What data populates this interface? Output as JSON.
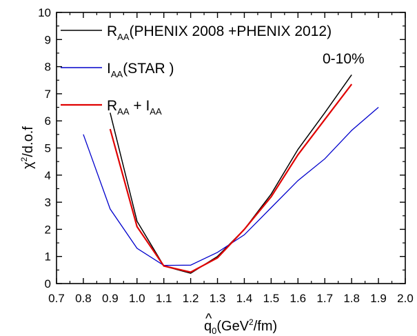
{
  "chart_data": {
    "type": "line",
    "xlabel": {
      "hat": "^",
      "base": "q",
      "sub": "0",
      "pre": "(GeV",
      "sup": "2",
      "post": "/fm)"
    },
    "ylabel": {
      "chi": "χ",
      "sup": "2",
      "rest": "/d.o.f"
    },
    "xlim": [
      0.7,
      2.0
    ],
    "ylim": [
      0,
      10
    ],
    "x_ticks": [
      "0.7",
      "0.8",
      "0.9",
      "1.0",
      "1.1",
      "1.2",
      "1.3",
      "1.4",
      "1.5",
      "1.6",
      "1.7",
      "1.8",
      "1.9",
      "2.0"
    ],
    "y_ticks": [
      "0",
      "1",
      "2",
      "3",
      "4",
      "5",
      "6",
      "7",
      "8",
      "9",
      "10"
    ],
    "grid": false,
    "legend_position": "top-left",
    "annotation": "0-10%",
    "series": [
      {
        "legend": {
          "main": "R",
          "sub": "AA",
          "rest": "(PHENIX 2008 +PHENIX 2012)"
        },
        "color": "#000000",
        "x": [
          0.9,
          1.0,
          1.1,
          1.2,
          1.3,
          1.4,
          1.5,
          1.6,
          1.7,
          1.8
        ],
        "y": [
          6.3,
          2.3,
          0.65,
          0.38,
          1.0,
          2.0,
          3.3,
          4.95,
          6.3,
          7.7
        ]
      },
      {
        "legend": {
          "main": "I",
          "sub": "AA",
          "rest": "(STAR )"
        },
        "color": "#0000cc",
        "x": [
          0.8,
          0.9,
          1.0,
          1.1,
          1.2,
          1.3,
          1.4,
          1.5,
          1.6,
          1.7,
          1.8,
          1.9
        ],
        "y": [
          5.5,
          2.75,
          1.3,
          0.67,
          0.68,
          1.15,
          1.8,
          2.8,
          3.8,
          4.6,
          5.65,
          6.5
        ]
      },
      {
        "legend": {
          "main": "R",
          "sub": "AA",
          "mid": " + I",
          "sub2": "AA"
        },
        "color": "#e00000",
        "x": [
          0.9,
          1.0,
          1.1,
          1.2,
          1.3,
          1.4,
          1.5,
          1.6,
          1.7,
          1.8
        ],
        "y": [
          5.7,
          2.1,
          0.65,
          0.42,
          0.95,
          2.0,
          3.2,
          4.75,
          6.05,
          7.35
        ]
      }
    ]
  }
}
